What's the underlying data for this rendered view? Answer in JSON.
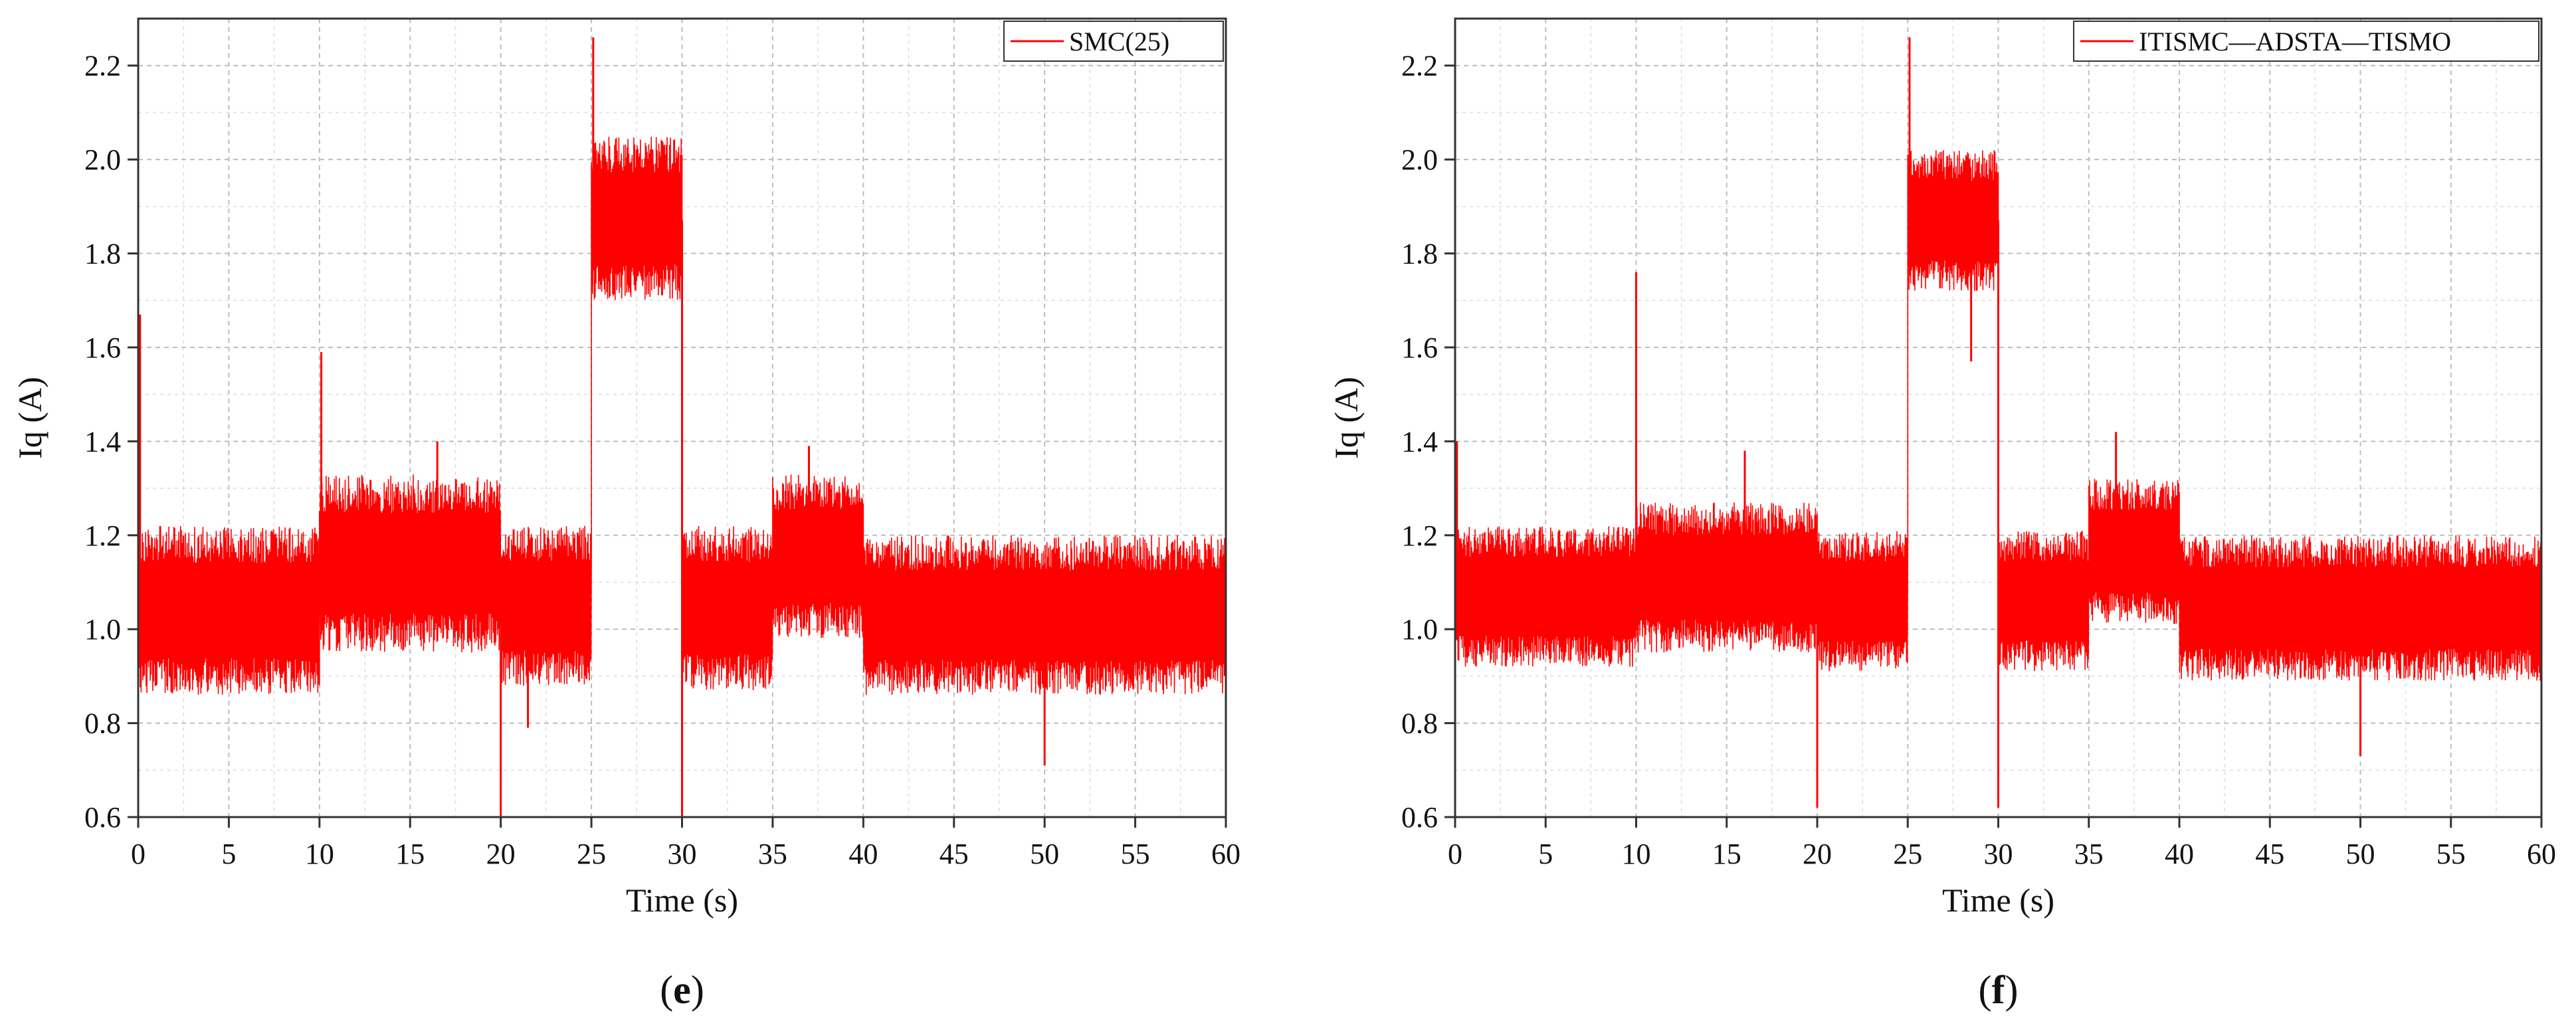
{
  "chart_data": [
    {
      "type": "line",
      "xlabel": "Time (s)",
      "ylabel": "Iq (A)",
      "xlim": [
        0,
        60
      ],
      "ylim": [
        0.6,
        2.3
      ],
      "x_ticks": [
        0,
        5,
        10,
        15,
        20,
        25,
        30,
        35,
        40,
        45,
        50,
        55,
        60
      ],
      "y_ticks": [
        0.6,
        0.8,
        1.0,
        1.2,
        1.4,
        1.6,
        1.8,
        2.0,
        2.2
      ],
      "grid": true,
      "legend_position": "top-right",
      "caption": {
        "open": "(",
        "letter": "e",
        "close": ")"
      },
      "series": [
        {
          "name": "SMC(25)",
          "color": "#ff0000",
          "segments": [
            {
              "x": [
                0,
                10
              ],
              "mean": 1.04,
              "band": [
                0.86,
                1.22
              ]
            },
            {
              "x": [
                10,
                20
              ],
              "mean": 1.15,
              "band": [
                0.95,
                1.33
              ]
            },
            {
              "x": [
                20,
                25
              ],
              "mean": 1.05,
              "band": [
                0.88,
                1.22
              ]
            },
            {
              "x": [
                25,
                30
              ],
              "mean": 1.87,
              "band": [
                1.7,
                2.05
              ]
            },
            {
              "x": [
                30,
                35
              ],
              "mean": 1.05,
              "band": [
                0.87,
                1.22
              ]
            },
            {
              "x": [
                35,
                40
              ],
              "mean": 1.15,
              "band": [
                0.98,
                1.33
              ]
            },
            {
              "x": [
                40,
                60
              ],
              "mean": 1.04,
              "band": [
                0.86,
                1.2
              ]
            }
          ],
          "spikes": [
            {
              "x": 0.1,
              "y": 1.67
            },
            {
              "x": 10.1,
              "y": 1.59
            },
            {
              "x": 20.0,
              "y": 0.6
            },
            {
              "x": 25.1,
              "y": 2.26
            },
            {
              "x": 30.0,
              "y": 0.6
            },
            {
              "x": 37.0,
              "y": 1.39
            },
            {
              "x": 50.0,
              "y": 0.71
            },
            {
              "x": 16.5,
              "y": 1.4
            },
            {
              "x": 21.5,
              "y": 0.79
            }
          ]
        }
      ]
    },
    {
      "type": "line",
      "xlabel": "Time (s)",
      "ylabel": "Iq (A)",
      "xlim": [
        0,
        60
      ],
      "ylim": [
        0.6,
        2.3
      ],
      "x_ticks": [
        0,
        5,
        10,
        15,
        20,
        25,
        30,
        35,
        40,
        45,
        50,
        55,
        60
      ],
      "y_ticks": [
        0.6,
        0.8,
        1.0,
        1.2,
        1.4,
        1.6,
        1.8,
        2.0,
        2.2
      ],
      "grid": true,
      "legend_position": "top-right",
      "caption": {
        "open": "(",
        "letter": "f",
        "close": ")"
      },
      "series": [
        {
          "name": "ITISMC—ADSTA—TISMO",
          "color": "#ff0000",
          "segments": [
            {
              "x": [
                0,
                10
              ],
              "mean": 1.06,
              "band": [
                0.92,
                1.22
              ]
            },
            {
              "x": [
                10,
                20
              ],
              "mean": 1.11,
              "band": [
                0.95,
                1.27
              ]
            },
            {
              "x": [
                20,
                25
              ],
              "mean": 1.06,
              "band": [
                0.91,
                1.21
              ]
            },
            {
              "x": [
                25,
                30
              ],
              "mean": 1.87,
              "band": [
                1.72,
                2.02
              ]
            },
            {
              "x": [
                30,
                35
              ],
              "mean": 1.06,
              "band": [
                0.91,
                1.21
              ]
            },
            {
              "x": [
                35,
                40
              ],
              "mean": 1.17,
              "band": [
                1.01,
                1.32
              ]
            },
            {
              "x": [
                40,
                60
              ],
              "mean": 1.05,
              "band": [
                0.89,
                1.2
              ]
            }
          ],
          "spikes": [
            {
              "x": 0.1,
              "y": 1.4
            },
            {
              "x": 10.0,
              "y": 1.76
            },
            {
              "x": 20.0,
              "y": 0.62
            },
            {
              "x": 25.1,
              "y": 2.26
            },
            {
              "x": 30.0,
              "y": 0.62
            },
            {
              "x": 36.5,
              "y": 1.42
            },
            {
              "x": 16.0,
              "y": 1.38
            },
            {
              "x": 50.0,
              "y": 0.73
            },
            {
              "x": 28.5,
              "y": 1.57
            }
          ]
        }
      ]
    }
  ]
}
